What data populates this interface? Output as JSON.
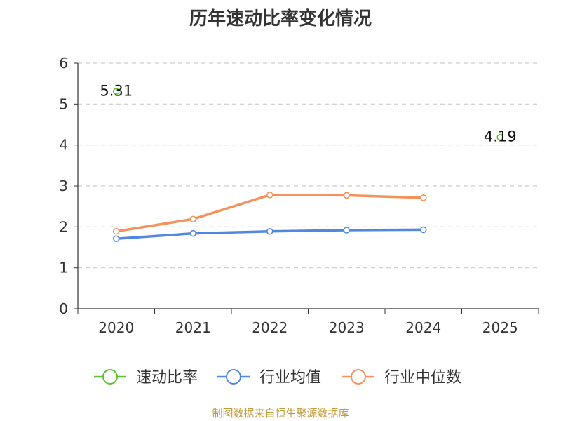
{
  "chart_data": {
    "type": "line",
    "title": "历年速动比率变化情况",
    "categories": [
      "2020",
      "2021",
      "2022",
      "2023",
      "2024",
      "2025"
    ],
    "ylim": [
      0,
      6
    ],
    "yticks": [
      0,
      1,
      2,
      3,
      4,
      5,
      6
    ],
    "grid": true,
    "legend_position": "bottom",
    "series": [
      {
        "name": "速动比率",
        "color": "#5ec22e",
        "values": [
          5.31,
          null,
          null,
          null,
          null,
          4.19
        ],
        "labels": [
          "5.31",
          null,
          null,
          null,
          null,
          "4.19"
        ]
      },
      {
        "name": "行业均值",
        "color": "#5088de",
        "values": [
          1.71,
          1.84,
          1.89,
          1.92,
          1.93,
          null
        ]
      },
      {
        "name": "行业中位数",
        "color": "#f5915a",
        "values": [
          1.89,
          2.19,
          2.78,
          2.77,
          2.71,
          null
        ]
      }
    ],
    "source": "制图数据来自恒生聚源数据库"
  }
}
